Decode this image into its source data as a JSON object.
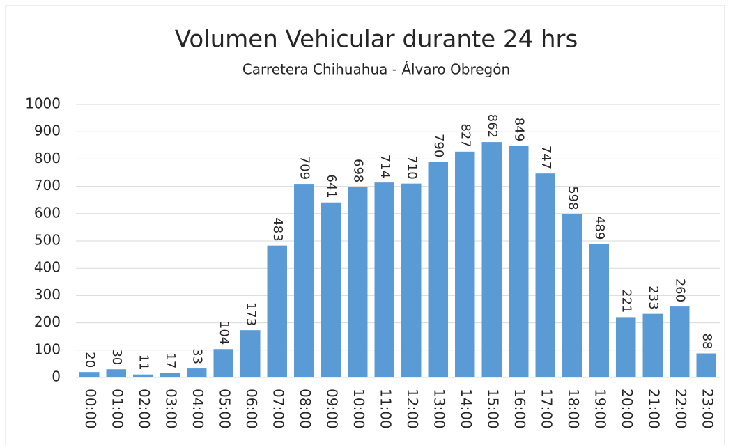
{
  "chart_data": {
    "type": "bar",
    "title": "Volumen Vehicular durante 24 hrs",
    "subtitle": "Carretera Chihuahua - Álvaro Obregón",
    "categories": [
      "00:00",
      "01:00",
      "02:00",
      "03:00",
      "04:00",
      "05:00",
      "06:00",
      "07:00",
      "08:00",
      "09:00",
      "10:00",
      "11:00",
      "12:00",
      "13:00",
      "14:00",
      "15:00",
      "16:00",
      "17:00",
      "18:00",
      "19:00",
      "20:00",
      "21:00",
      "22:00",
      "23:00"
    ],
    "values": [
      20,
      30,
      11,
      17,
      33,
      104,
      173,
      483,
      709,
      641,
      698,
      714,
      710,
      790,
      827,
      862,
      849,
      747,
      598,
      489,
      221,
      233,
      260,
      88
    ],
    "color": "#5b9bd5",
    "ylim": [
      0,
      1000
    ],
    "yticks": [
      0,
      100,
      200,
      300,
      400,
      500,
      600,
      700,
      800,
      900,
      1000
    ],
    "grid": true
  }
}
